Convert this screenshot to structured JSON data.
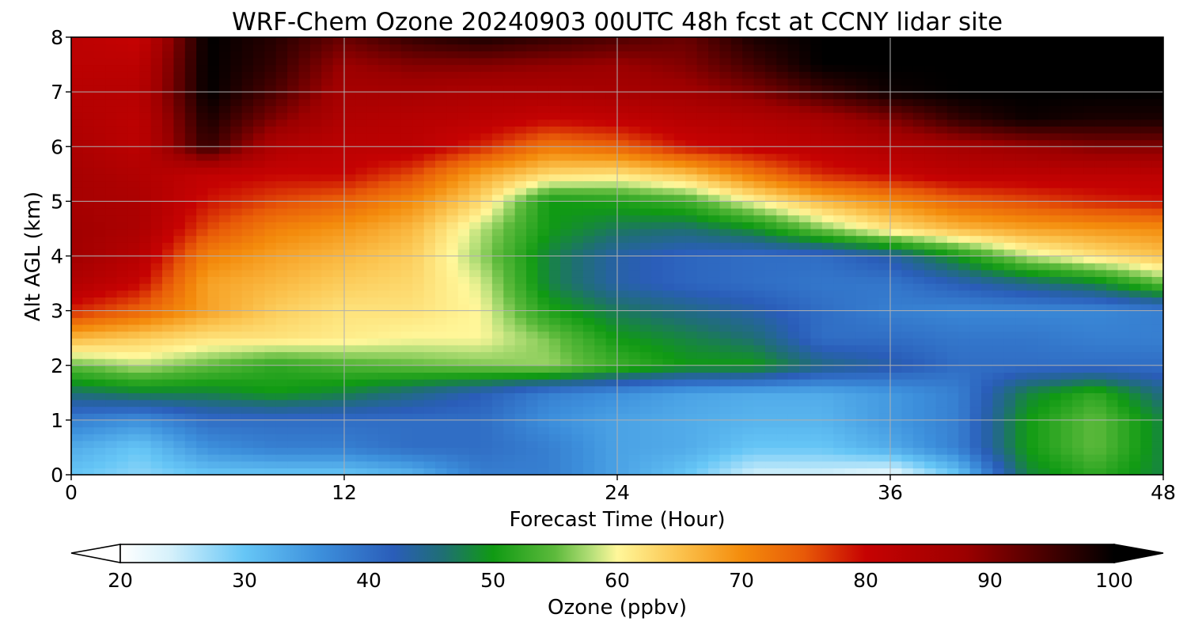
{
  "chart_data": {
    "type": "heatmap",
    "title": "WRF-Chem Ozone  20240903 00UTC 48h fcst at CCNY lidar site",
    "xlabel": "Forecast Time (Hour)",
    "ylabel": "Alt AGL (km)",
    "xlim": [
      0,
      48
    ],
    "ylim": [
      0,
      8
    ],
    "x_ticks": [
      "0",
      "12",
      "24",
      "36",
      "48"
    ],
    "y_ticks": [
      "0",
      "1",
      "2",
      "3",
      "4",
      "5",
      "6",
      "7",
      "8"
    ],
    "grid": true,
    "z_unit_label": "Ozone  (ppbv)",
    "colorbar": {
      "range": [
        20,
        100
      ],
      "ticks": [
        "20",
        "30",
        "40",
        "50",
        "60",
        "70",
        "80",
        "90",
        "100"
      ],
      "extend": "both",
      "placement": "bottom"
    },
    "x": [
      0,
      3,
      6,
      9,
      12,
      15,
      18,
      21,
      24,
      27,
      30,
      33,
      36,
      39,
      42,
      45,
      48
    ],
    "y": [
      0,
      0.5,
      1,
      1.5,
      2,
      2.5,
      3,
      3.5,
      4,
      4.5,
      5,
      5.5,
      6,
      6.5,
      7,
      7.5,
      8
    ],
    "z": [
      [
        30,
        28,
        30,
        30,
        30,
        32,
        38,
        38,
        34,
        30,
        24,
        24,
        22,
        30,
        48,
        52,
        48
      ],
      [
        33,
        30,
        36,
        38,
        38,
        40,
        40,
        38,
        34,
        33,
        30,
        30,
        33,
        38,
        50,
        55,
        48
      ],
      [
        38,
        36,
        40,
        40,
        40,
        40,
        40,
        36,
        34,
        33,
        32,
        32,
        35,
        38,
        50,
        55,
        48
      ],
      [
        46,
        48,
        48,
        50,
        48,
        45,
        42,
        38,
        36,
        34,
        33,
        33,
        35,
        38,
        48,
        52,
        45
      ],
      [
        55,
        58,
        55,
        52,
        54,
        55,
        56,
        57,
        53,
        50,
        50,
        45,
        43,
        40,
        40,
        40,
        40
      ],
      [
        66,
        64,
        62,
        62,
        61,
        60,
        60,
        56,
        50,
        48,
        46,
        40,
        40,
        39,
        39,
        38,
        38
      ],
      [
        78,
        74,
        68,
        64,
        62,
        62,
        60,
        51,
        47,
        45,
        43,
        40,
        38,
        37,
        37,
        37,
        38
      ],
      [
        84,
        80,
        68,
        66,
        64,
        63,
        59,
        48,
        43,
        41,
        40,
        39,
        39,
        42,
        45,
        48,
        55
      ],
      [
        87,
        83,
        71,
        68,
        66,
        64,
        57,
        48,
        43,
        41,
        40,
        40,
        43,
        50,
        58,
        62,
        65
      ],
      [
        87,
        85,
        76,
        71,
        69,
        66,
        58,
        50,
        47,
        46,
        49,
        56,
        62,
        66,
        68,
        69,
        70
      ],
      [
        86,
        85,
        79,
        76,
        74,
        70,
        63,
        50,
        51,
        53,
        60,
        66,
        70,
        74,
        76,
        78,
        79
      ],
      [
        86,
        84,
        81,
        80,
        80,
        76,
        68,
        63,
        62,
        65,
        72,
        78,
        80,
        82,
        82,
        82,
        82
      ],
      [
        85,
        82,
        96,
        84,
        82,
        82,
        78,
        72,
        74,
        79,
        81,
        82,
        84,
        86,
        88,
        90,
        90
      ],
      [
        84,
        82,
        98,
        90,
        84,
        83,
        82,
        80,
        81,
        83,
        84,
        86,
        90,
        96,
        99,
        98,
        98
      ],
      [
        83,
        83,
        100,
        94,
        86,
        86,
        85,
        85,
        86,
        87,
        90,
        95,
        99,
        100,
        100,
        100,
        100
      ],
      [
        82,
        82,
        100,
        96,
        88,
        90,
        90,
        89,
        88,
        90,
        95,
        100,
        100,
        100,
        100,
        100,
        100
      ],
      [
        82,
        80,
        100,
        97,
        92,
        96,
        98,
        96,
        94,
        92,
        98,
        100,
        100,
        100,
        100,
        100,
        100
      ]
    ]
  }
}
